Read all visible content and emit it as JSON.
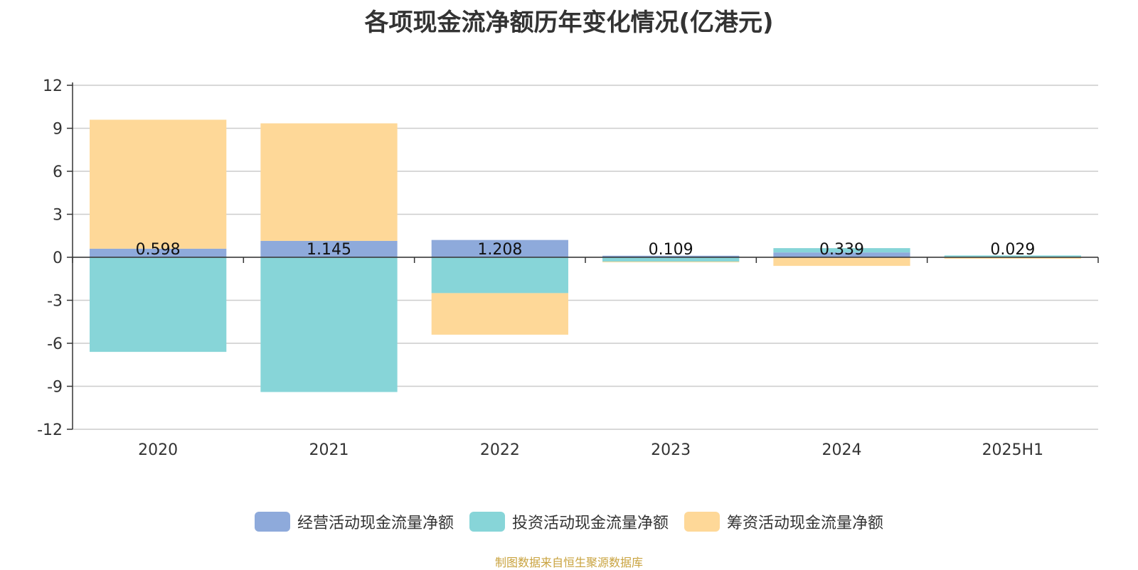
{
  "chart_data": {
    "type": "bar",
    "stacked": true,
    "title": "各项现金流净额历年变化情况(亿港元)",
    "categories": [
      "2020",
      "2021",
      "2022",
      "2023",
      "2024",
      "2025H1"
    ],
    "ylim": [
      -12,
      12
    ],
    "yticks": [
      12,
      9,
      6,
      3,
      0,
      -3,
      -6,
      -9,
      -12
    ],
    "grid": true,
    "legend_position": "bottom",
    "series": [
      {
        "name": "经营活动现金流量净额",
        "color": "#8eaadb",
        "values": [
          0.598,
          1.145,
          1.208,
          0.109,
          0.339,
          0.029
        ],
        "labels": [
          "0.598",
          "1.145",
          "1.208",
          "0.109",
          "0.339",
          "0.029"
        ]
      },
      {
        "name": "投资活动现金流量净额",
        "color": "#87d5d8",
        "values": [
          -6.6,
          -9.4,
          -2.5,
          -0.3,
          0.3,
          0.1
        ]
      },
      {
        "name": "筹资活动现金流量净额",
        "color": "#fed898",
        "values": [
          9.0,
          8.2,
          -2.9,
          -0.05,
          -0.6,
          -0.1
        ]
      }
    ]
  },
  "source": "制图数据来自恒生聚源数据库"
}
